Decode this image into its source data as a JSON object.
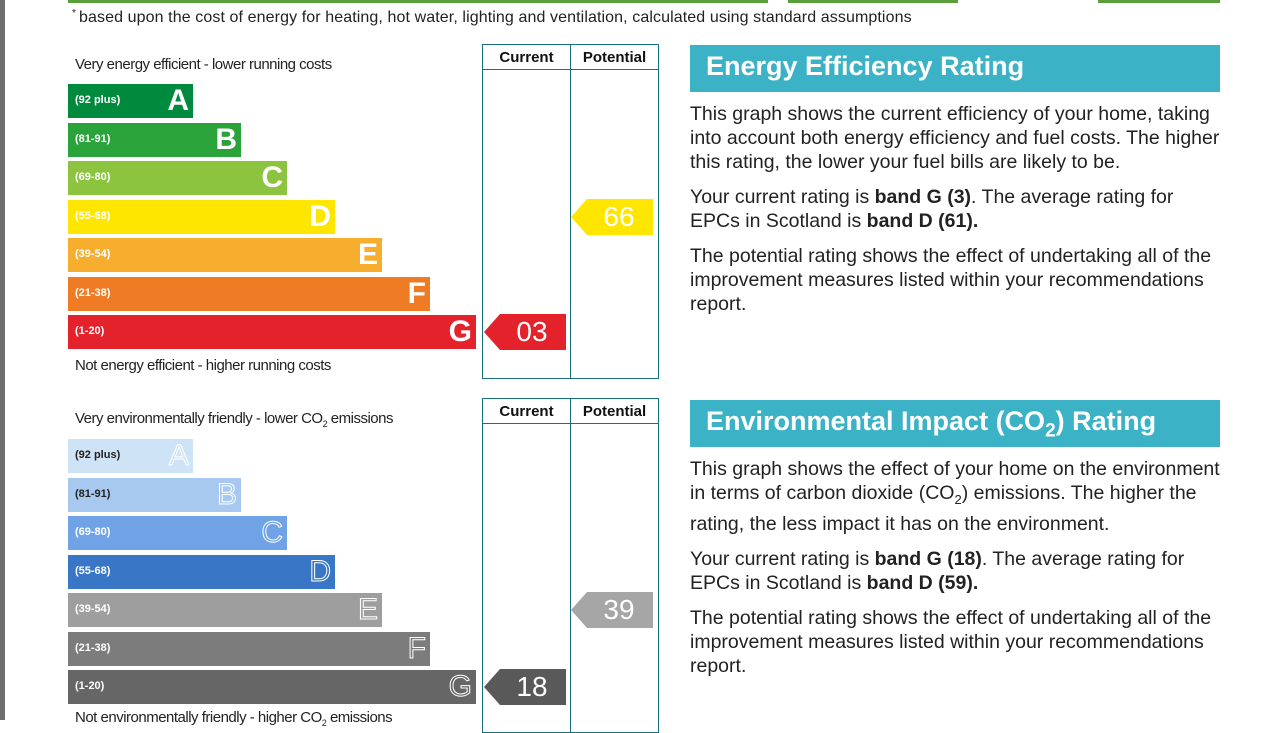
{
  "footnote": {
    "marker": "*",
    "text": "based upon the cost of energy for heating, hot water, lighting and ventilation, calculated using standard assumptions"
  },
  "energy_chart": {
    "top_label": "Very energy efficient - lower running costs",
    "bottom_label": "Not energy efficient - higher running costs",
    "current_header": "Current",
    "potential_header": "Potential",
    "bands": [
      {
        "range": "(92 plus)",
        "letter": "A",
        "color": "#008a3e"
      },
      {
        "range": "(81-91)",
        "letter": "B",
        "color": "#2ba33b"
      },
      {
        "range": "(69-80)",
        "letter": "C",
        "color": "#8cc43f"
      },
      {
        "range": "(55-68)",
        "letter": "D",
        "color": "#ffe600"
      },
      {
        "range": "(39-54)",
        "letter": "E",
        "color": "#f7ae2f"
      },
      {
        "range": "(21-38)",
        "letter": "F",
        "color": "#ef7b24"
      },
      {
        "range": "(1-20)",
        "letter": "G",
        "color": "#e3222c"
      }
    ],
    "current": {
      "value": "03",
      "band": "G",
      "color": "#e3222c",
      "text_color": "#ffffff"
    },
    "potential": {
      "value": "66",
      "band": "D",
      "color": "#ffe600",
      "text_color": "#ffffff"
    }
  },
  "environment_chart": {
    "top_label_pre": "Very environmentally friendly - lower CO",
    "top_label_sub": "2",
    "top_label_post": " emissions",
    "bottom_label_pre": "Not environmentally friendly - higher CO",
    "bottom_label_sub": "2",
    "bottom_label_post": " emissions",
    "current_header": "Current",
    "potential_header": "Potential",
    "bands": [
      {
        "range": "(92 plus)",
        "letter": "A",
        "color": "#cfe3f7"
      },
      {
        "range": "(81-91)",
        "letter": "B",
        "color": "#a7c9ef"
      },
      {
        "range": "(69-80)",
        "letter": "C",
        "color": "#6fa3e6"
      },
      {
        "range": "(55-68)",
        "letter": "D",
        "color": "#3a76c6"
      },
      {
        "range": "(39-54)",
        "letter": "E",
        "color": "#9e9e9e"
      },
      {
        "range": "(21-38)",
        "letter": "F",
        "color": "#7c7c7c"
      },
      {
        "range": "(1-20)",
        "letter": "G",
        "color": "#666666"
      }
    ],
    "current": {
      "value": "18",
      "band": "G",
      "color": "#595959",
      "text_color": "#ffffff"
    },
    "potential": {
      "value": "39",
      "band": "E",
      "color": "#a6a6a6",
      "text_color": "#ffffff"
    }
  },
  "energy_panel": {
    "heading": "Energy Efficiency Rating",
    "para1": "This graph shows the current efficiency of your home, taking into account both energy efficiency and fuel costs. The higher this rating, the lower your fuel bills are likely to be.",
    "para2_pre": "Your current rating is ",
    "para2_bold1": "band G (3)",
    "para2_mid": ". The average rating for EPCs in Scotland is ",
    "para2_bold2": "band D (61).",
    "para3": "The potential rating shows the effect of undertaking all of the improvement measures listed within your recommendations report."
  },
  "environment_panel": {
    "heading_pre": "Environmental Impact (CO",
    "heading_sub": "2",
    "heading_post": ") Rating",
    "para1_pre": "This graph shows the effect of your home on the environment in terms of carbon dioxide (CO",
    "para1_sub": "2",
    "para1_post": ") emissions. The higher the rating, the less impact it has on the environment.",
    "para2_pre": "Your current rating is ",
    "para2_bold1": "band G (18)",
    "para2_mid": ". The average rating for EPCs in Scotland is ",
    "para2_bold2": "band D (59).",
    "para3": "The potential rating shows the effect of undertaking all of the improvement measures listed within your recommendations report."
  }
}
